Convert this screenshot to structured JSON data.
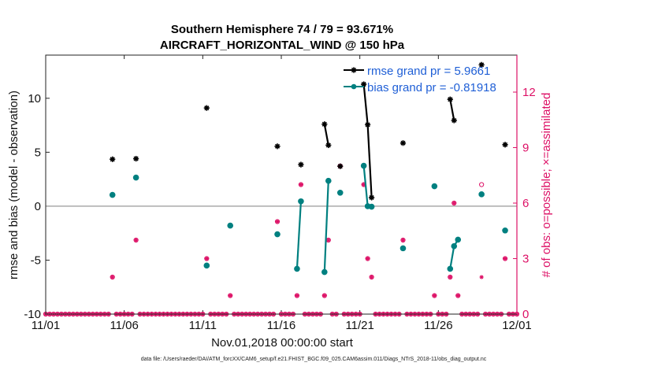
{
  "chart_data": {
    "type": "line",
    "title": "Southern Hemisphere 74 / 79 = 93.671%",
    "subtitle": "AIRCRAFT_HORIZONTAL_WIND @ 150 hPa",
    "xlabel": "Nov.01,2018 00:00:00 start",
    "ylabel": "rmse and bias (model - observation)",
    "y2label": "# of obs: o=possible; ×=assimilated",
    "footnote": "data file: /Users/raeder/DAI/ATM_forcXX/CAM6_setup/f.e21.FHIST_BGC.f09_025.CAM6assim.011/Diags_NTrS_2018-11/obs_diag_output.nc",
    "xlim": [
      0,
      30
    ],
    "ylim": [
      -10,
      14
    ],
    "y2lim": [
      0,
      14
    ],
    "x_ticks": [
      0,
      5,
      10,
      15,
      20,
      25,
      30
    ],
    "x_tick_labels": [
      "11/01",
      "11/06",
      "11/11",
      "11/16",
      "11/21",
      "11/26",
      "12/01"
    ],
    "y_ticks": [
      -10,
      -5,
      0,
      5,
      10
    ],
    "y_tick_labels": [
      "-10",
      "-5",
      "0",
      "5",
      "10"
    ],
    "y2_ticks": [
      0,
      3,
      6,
      9,
      12
    ],
    "y2_tick_labels": [
      "0",
      "3",
      "6",
      "9",
      "12"
    ],
    "colors": {
      "rmse": "#000000",
      "bias": "#008080",
      "obs": "#dd1166",
      "zero_line": "#aaaaaa"
    },
    "legend": [
      {
        "name": "rmse grand pr = 5.9661",
        "color": "#000000"
      },
      {
        "name": "bias grand pr = -0.81918",
        "color": "#008080"
      }
    ],
    "series": [
      {
        "name": "rmse",
        "segments": [
          [
            [
              4.25,
              4.35
            ]
          ],
          [
            [
              5.75,
              4.4
            ]
          ],
          [
            [
              10.25,
              9.1
            ]
          ],
          [
            [
              14.75,
              5.55
            ]
          ],
          [
            [
              16.25,
              3.85
            ]
          ],
          [
            [
              17.75,
              7.6
            ],
            [
              18.0,
              5.65
            ]
          ],
          [
            [
              18.75,
              3.7
            ]
          ],
          [
            [
              20.25,
              11.3
            ],
            [
              20.5,
              7.55
            ],
            [
              20.75,
              0.8
            ]
          ],
          [
            [
              22.75,
              5.85
            ]
          ],
          [
            [
              25.75,
              9.9
            ],
            [
              26.0,
              7.95
            ]
          ],
          [
            [
              27.75,
              13.1
            ]
          ],
          [
            [
              29.25,
              5.7
            ]
          ]
        ]
      },
      {
        "name": "bias",
        "segments": [
          [
            [
              4.25,
              1.05
            ]
          ],
          [
            [
              5.75,
              2.65
            ]
          ],
          [
            [
              10.25,
              -5.5
            ]
          ],
          [
            [
              11.75,
              -1.8
            ]
          ],
          [
            [
              14.75,
              -2.6
            ]
          ],
          [
            [
              16.0,
              -5.8
            ],
            [
              16.25,
              0.45
            ]
          ],
          [
            [
              17.75,
              -6.1
            ],
            [
              18.0,
              2.35
            ]
          ],
          [
            [
              18.75,
              1.25
            ]
          ],
          [
            [
              20.25,
              3.75
            ],
            [
              20.5,
              0.0
            ],
            [
              20.75,
              -0.05
            ]
          ],
          [
            [
              22.75,
              -3.9
            ]
          ],
          [
            [
              24.75,
              1.85
            ]
          ],
          [
            [
              25.75,
              -5.8
            ],
            [
              26.0,
              -3.7
            ],
            [
              26.25,
              -3.1
            ]
          ],
          [
            [
              27.75,
              1.1
            ]
          ],
          [
            [
              29.25,
              -2.25
            ]
          ]
        ]
      }
    ],
    "obs_possible": [
      [
        4.25,
        2
      ],
      [
        5.75,
        4
      ],
      [
        10.25,
        3
      ],
      [
        11.75,
        1
      ],
      [
        14.75,
        5
      ],
      [
        16.0,
        1
      ],
      [
        16.25,
        7
      ],
      [
        17.75,
        1
      ],
      [
        18.0,
        4
      ],
      [
        18.75,
        8
      ],
      [
        20.25,
        7
      ],
      [
        20.5,
        3
      ],
      [
        20.75,
        2
      ],
      [
        22.75,
        4
      ],
      [
        24.75,
        1
      ],
      [
        25.75,
        2
      ],
      [
        26.0,
        6
      ],
      [
        26.25,
        1
      ],
      [
        27.75,
        7
      ],
      [
        29.25,
        3
      ]
    ],
    "obs_assimilated": [
      [
        4.25,
        2
      ],
      [
        5.75,
        4
      ],
      [
        10.25,
        3
      ],
      [
        11.75,
        1
      ],
      [
        14.75,
        5
      ],
      [
        16.0,
        1
      ],
      [
        16.25,
        7
      ],
      [
        17.75,
        1
      ],
      [
        18.0,
        4
      ],
      [
        18.75,
        8
      ],
      [
        20.25,
        7
      ],
      [
        20.5,
        3
      ],
      [
        20.75,
        2
      ],
      [
        22.75,
        4
      ],
      [
        24.75,
        1
      ],
      [
        25.75,
        2
      ],
      [
        26.0,
        6
      ],
      [
        26.25,
        1
      ],
      [
        27.75,
        2
      ],
      [
        29.25,
        3
      ]
    ],
    "zero_count_spacing_days": 0.25
  }
}
